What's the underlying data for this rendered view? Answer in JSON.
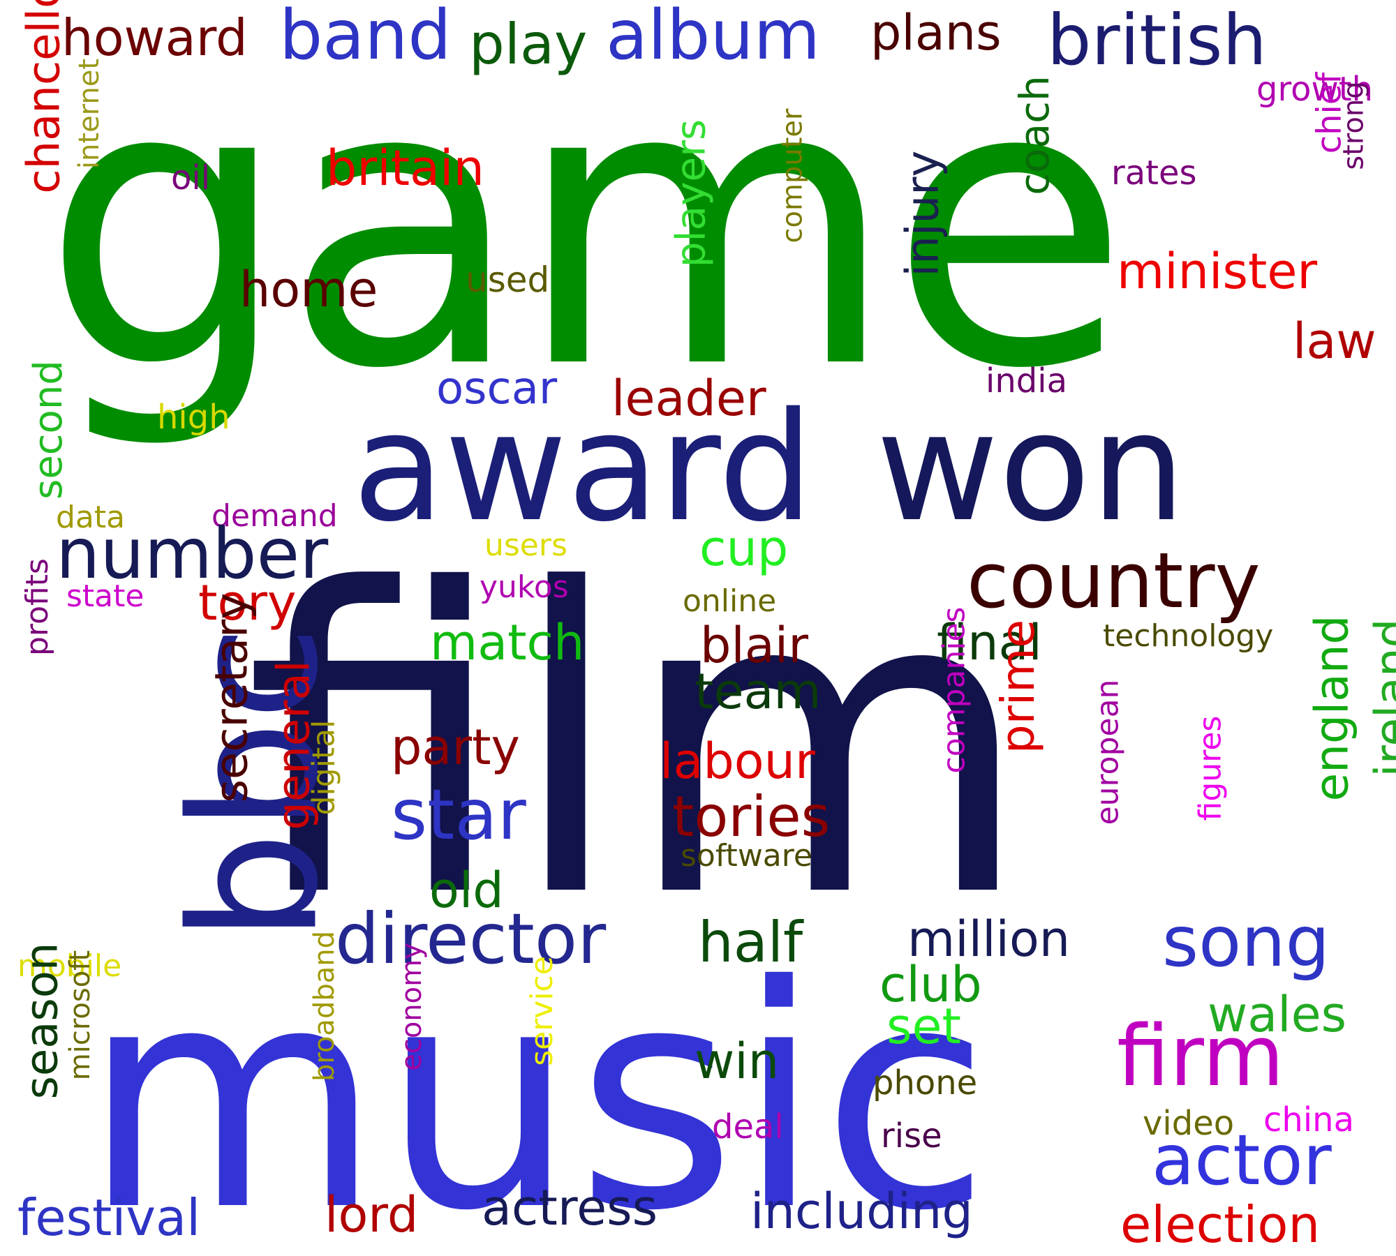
{
  "words": [
    {
      "text": "game",
      "color": "#008c00"
    },
    {
      "text": "award",
      "color": "#1b1f78"
    },
    {
      "text": "won",
      "color": "#15185a"
    },
    {
      "text": "film",
      "color": "#11134a"
    },
    {
      "text": "music",
      "color": "#3333d6"
    },
    {
      "text": "bbc",
      "color": "#1e2288"
    },
    {
      "text": "band",
      "color": "#2e34c4"
    },
    {
      "text": "album",
      "color": "#2e34c4"
    },
    {
      "text": "play",
      "color": "#0b5a0b"
    },
    {
      "text": "british",
      "color": "#1c1c70"
    },
    {
      "text": "howard",
      "color": "#6b0000"
    },
    {
      "text": "plans",
      "color": "#4a0000"
    },
    {
      "text": "chancellor",
      "color": "#d40000"
    },
    {
      "text": "internet",
      "color": "#9a9a1a"
    },
    {
      "text": "growth",
      "color": "#b000b0"
    },
    {
      "text": "chief",
      "color": "#c000c0"
    },
    {
      "text": "strong",
      "color": "#6b006b"
    },
    {
      "text": "rates",
      "color": "#7a007a"
    },
    {
      "text": "oil",
      "color": "#7a007a"
    },
    {
      "text": "britain",
      "color": "#ee0000"
    },
    {
      "text": "players",
      "color": "#33dd33"
    },
    {
      "text": "computer",
      "color": "#7a7a00"
    },
    {
      "text": "coach",
      "color": "#0a6a0a"
    },
    {
      "text": "injury",
      "color": "#1a2050"
    },
    {
      "text": "minister",
      "color": "#ee0000"
    },
    {
      "text": "home",
      "color": "#5a0000"
    },
    {
      "text": "used",
      "color": "#5a5a00"
    },
    {
      "text": "law",
      "color": "#b00000"
    },
    {
      "text": "oscar",
      "color": "#3333cc"
    },
    {
      "text": "leader",
      "color": "#9a0000"
    },
    {
      "text": "india",
      "color": "#6a006a"
    },
    {
      "text": "high",
      "color": "#d8d800"
    },
    {
      "text": "second",
      "color": "#22bb22"
    },
    {
      "text": "data",
      "color": "#a09a00"
    },
    {
      "text": "demand",
      "color": "#9a009a"
    },
    {
      "text": "number",
      "color": "#161a55"
    },
    {
      "text": "cup",
      "color": "#22ee22"
    },
    {
      "text": "users",
      "color": "#dddd00"
    },
    {
      "text": "country",
      "color": "#3a0000"
    },
    {
      "text": "state",
      "color": "#cc00cc"
    },
    {
      "text": "tory",
      "color": "#d00000"
    },
    {
      "text": "yukos",
      "color": "#b000b0"
    },
    {
      "text": "online",
      "color": "#6a6a00"
    },
    {
      "text": "profits",
      "color": "#7a007a"
    },
    {
      "text": "match",
      "color": "#11bb11"
    },
    {
      "text": "blair",
      "color": "#6b0000"
    },
    {
      "text": "final",
      "color": "#0b3a0b"
    },
    {
      "text": "technology",
      "color": "#4a4a00"
    },
    {
      "text": "secretary",
      "color": "#4a0000"
    },
    {
      "text": "team",
      "color": "#0b3a0b"
    },
    {
      "text": "ireland",
      "color": "#22aa22"
    },
    {
      "text": "england",
      "color": "#11aa11"
    },
    {
      "text": "companies",
      "color": "#c000c0"
    },
    {
      "text": "party",
      "color": "#8a0000"
    },
    {
      "text": "labour",
      "color": "#dd0000"
    },
    {
      "text": "prime",
      "color": "#dd0000"
    },
    {
      "text": "general",
      "color": "#cc0000"
    },
    {
      "text": "digital",
      "color": "#a09a00"
    },
    {
      "text": "european",
      "color": "#a000a0"
    },
    {
      "text": "star",
      "color": "#2e34c4"
    },
    {
      "text": "tories",
      "color": "#8a0000"
    },
    {
      "text": "figures",
      "color": "#ee00ee"
    },
    {
      "text": "software",
      "color": "#4a4a00"
    },
    {
      "text": "old",
      "color": "#0b6a0b"
    },
    {
      "text": "director",
      "color": "#23278f"
    },
    {
      "text": "half",
      "color": "#0b4a0b"
    },
    {
      "text": "million",
      "color": "#161a55"
    },
    {
      "text": "song",
      "color": "#2e34c4"
    },
    {
      "text": "mobile",
      "color": "#dddd00"
    },
    {
      "text": "club",
      "color": "#119911"
    },
    {
      "text": "set",
      "color": "#22ee22"
    },
    {
      "text": "wales",
      "color": "#22aa22"
    },
    {
      "text": "season",
      "color": "#0b3a0b"
    },
    {
      "text": "microsoft",
      "color": "#6a6a00"
    },
    {
      "text": "broadband",
      "color": "#a09a00"
    },
    {
      "text": "economy",
      "color": "#a000a0"
    },
    {
      "text": "service",
      "color": "#eeee00"
    },
    {
      "text": "firm",
      "color": "#c000c0"
    },
    {
      "text": "win",
      "color": "#0b4a0b"
    },
    {
      "text": "phone",
      "color": "#4a4a00"
    },
    {
      "text": "video",
      "color": "#6a6a00"
    },
    {
      "text": "china",
      "color": "#ee00ee"
    },
    {
      "text": "deal",
      "color": "#b000b0"
    },
    {
      "text": "rise",
      "color": "#4a004a"
    },
    {
      "text": "actor",
      "color": "#3333dd"
    },
    {
      "text": "festival",
      "color": "#2e34c4"
    },
    {
      "text": "lord",
      "color": "#b00000"
    },
    {
      "text": "actress",
      "color": "#161a55"
    },
    {
      "text": "including",
      "color": "#1e2288"
    },
    {
      "text": "election",
      "color": "#dd0000"
    }
  ]
}
